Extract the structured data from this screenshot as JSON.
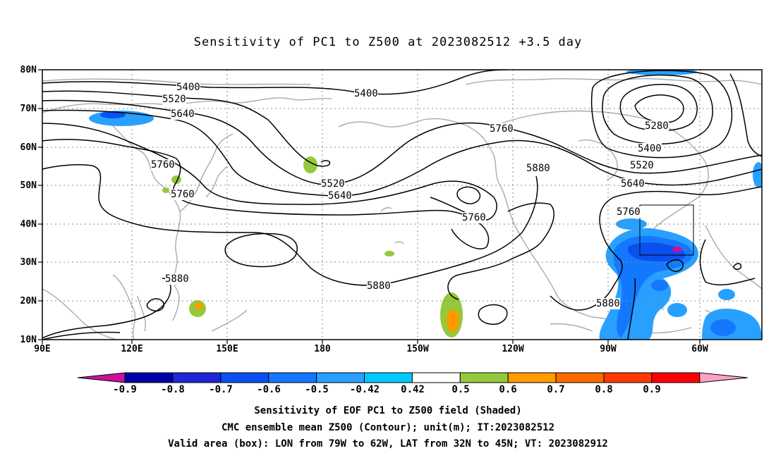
{
  "title": "Sensitivity of PC1 to Z500 at 2023082512 +3.5 day",
  "axes": {
    "lat_labels": [
      "80N",
      "70N",
      "60N",
      "50N",
      "40N",
      "30N",
      "20N",
      "10N"
    ],
    "lon_labels": [
      "90E",
      "120E",
      "150E",
      "180",
      "150W",
      "120W",
      "90W",
      "60W"
    ]
  },
  "contour_labels": [
    "5400",
    "5400",
    "5520",
    "5640",
    "5760",
    "5760",
    "5520",
    "5640",
    "5760",
    "5880",
    "5760",
    "5880",
    "5880",
    "5280",
    "5400",
    "5520",
    "5640",
    "5760"
  ],
  "colorbar": {
    "labels": [
      "-0.9",
      "-0.8",
      "-0.7",
      "-0.6",
      "-0.5",
      "-0.42",
      "0.42",
      "0.5",
      "0.6",
      "0.7",
      "0.8",
      "0.9"
    ],
    "colors": [
      "#c8129a",
      "#0000a8",
      "#1e28d8",
      "#0a50f0",
      "#1478ff",
      "#28a0ff",
      "#00c8ff",
      "#ffffff",
      "#96c83c",
      "#ff9a00",
      "#ff6a00",
      "#ff3a00",
      "#ff0000",
      "#ffa0c8"
    ]
  },
  "footer": {
    "line1": "Sensitivity of EOF PC1 to Z500 field (Shaded)",
    "line2": "CMC ensemble mean Z500 (Contour); unit(m); IT:2023082512",
    "line3": "Valid area (box): LON from 79W to 62W, LAT from 32N to 45N; VT: 2023082912"
  }
}
